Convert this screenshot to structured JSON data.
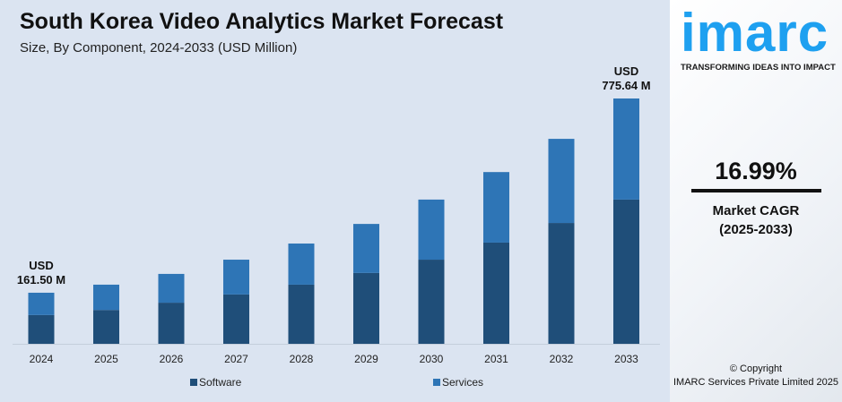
{
  "header": {
    "title": "South Korea Video Analytics Market Forecast",
    "subtitle": "Size, By Component, 2024-2033 (USD Million)"
  },
  "sidebar": {
    "logo": "imarc",
    "tagline": "TRANSFORMING IDEAS INTO IMPACT",
    "cagr_value": "16.99%",
    "cagr_label": "Market CAGR",
    "cagr_period": "(2025-2033)",
    "copyright": "© Copyright",
    "company": "IMARC Services Private Limited 2025"
  },
  "colors": {
    "software": "#1f4e79",
    "services": "#2e75b6",
    "background": "#dbe4f1",
    "logo": "#1ea0f0"
  },
  "chart_data": {
    "type": "bar",
    "stacked": true,
    "title": "South Korea Video Analytics Market Forecast",
    "subtitle": "Size, By Component, 2024-2033 (USD Million)",
    "categories": [
      "2024",
      "2025",
      "2026",
      "2027",
      "2028",
      "2029",
      "2030",
      "2031",
      "2032",
      "2033"
    ],
    "series": [
      {
        "name": "Software",
        "values": [
          91,
          107,
          130,
          156,
          187,
          224,
          266,
          320,
          382,
          456
        ]
      },
      {
        "name": "Services",
        "values": [
          70.5,
          80,
          91,
          110,
          130,
          155,
          190,
          223,
          266,
          319.64
        ]
      }
    ],
    "annotations": [
      {
        "category": "2024",
        "line1": "USD",
        "line2": "161.50 M"
      },
      {
        "category": "2033",
        "line1": "USD",
        "line2": "775.64 M"
      }
    ],
    "ylim": [
      0,
      800
    ],
    "grid": false,
    "legend": "bottom"
  }
}
